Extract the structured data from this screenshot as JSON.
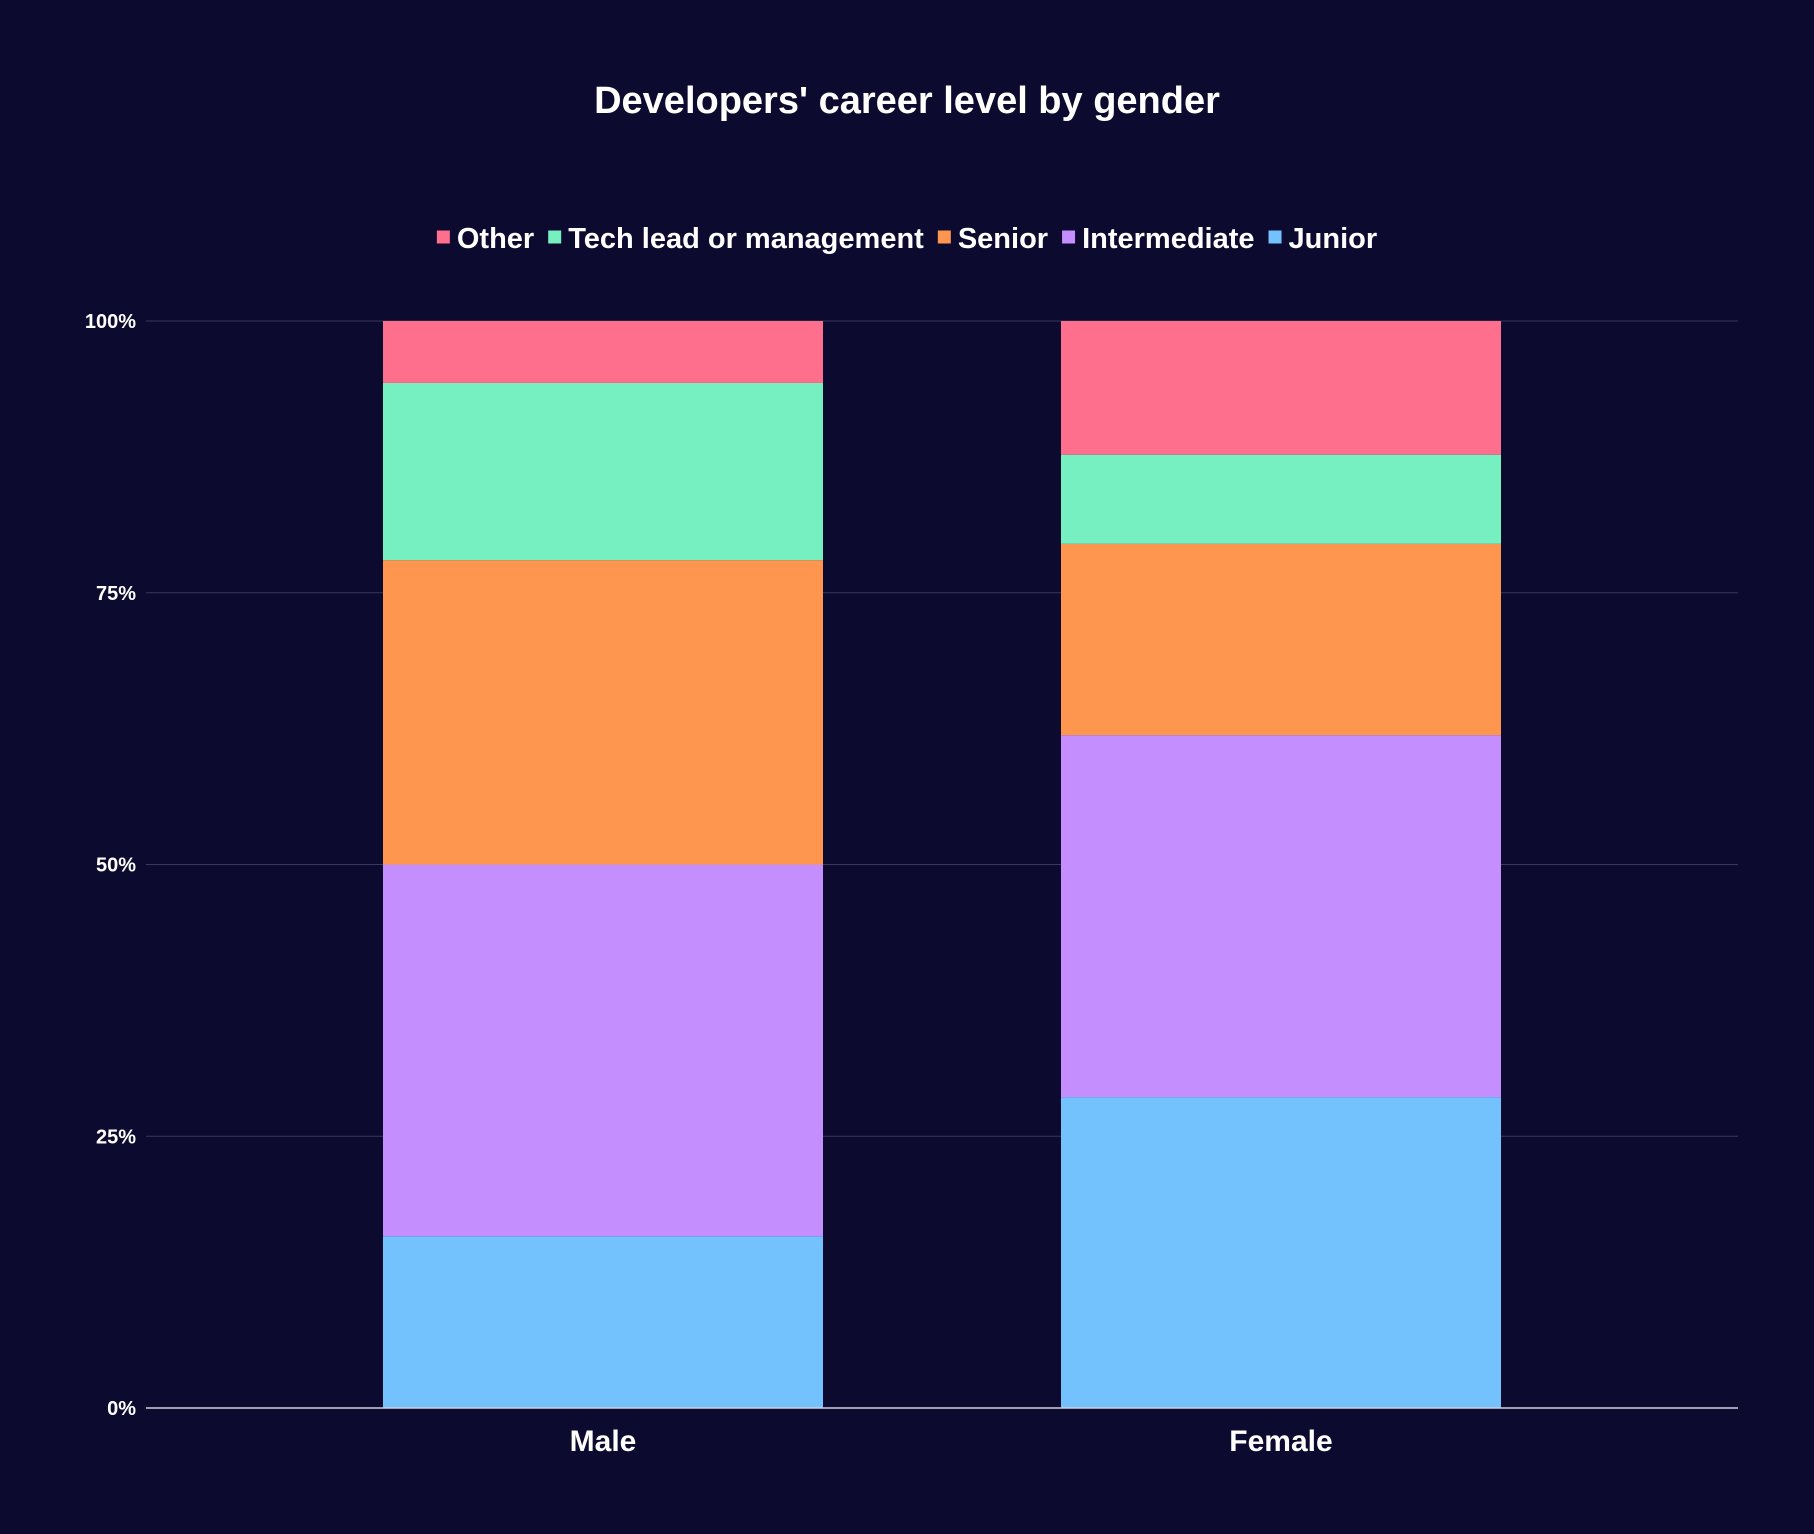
{
  "chart_data": {
    "type": "bar",
    "stacked": true,
    "title": "Developers' career level by gender",
    "categories": [
      "Male",
      "Female"
    ],
    "series": [
      {
        "name": "Junior",
        "color": "#73c2fe",
        "values": [
          15.8,
          28.6
        ]
      },
      {
        "name": "Intermediate",
        "color": "#c48efe",
        "values": [
          34.2,
          33.3
        ]
      },
      {
        "name": "Senior",
        "color": "#ff9650",
        "values": [
          28.0,
          17.6
        ]
      },
      {
        "name": "Tech lead or management",
        "color": "#76f0c0",
        "values": [
          16.3,
          8.2
        ]
      },
      {
        "name": "Other",
        "color": "#fe6f8e",
        "values": [
          5.7,
          12.3
        ]
      }
    ],
    "legend_order": [
      "Other",
      "Tech lead or management",
      "Senior",
      "Intermediate",
      "Junior"
    ],
    "ylim": [
      0,
      100
    ],
    "yticks": [
      "0%",
      "25%",
      "50%",
      "75%",
      "100%"
    ],
    "ytick_values": [
      0,
      25,
      50,
      75,
      100
    ],
    "xlabel": "",
    "ylabel": "",
    "grid": true,
    "legend_position": "top-center"
  },
  "colors": {
    "background": "#0c0a2e",
    "text": "#ffffff",
    "grid": "#3a3760"
  }
}
